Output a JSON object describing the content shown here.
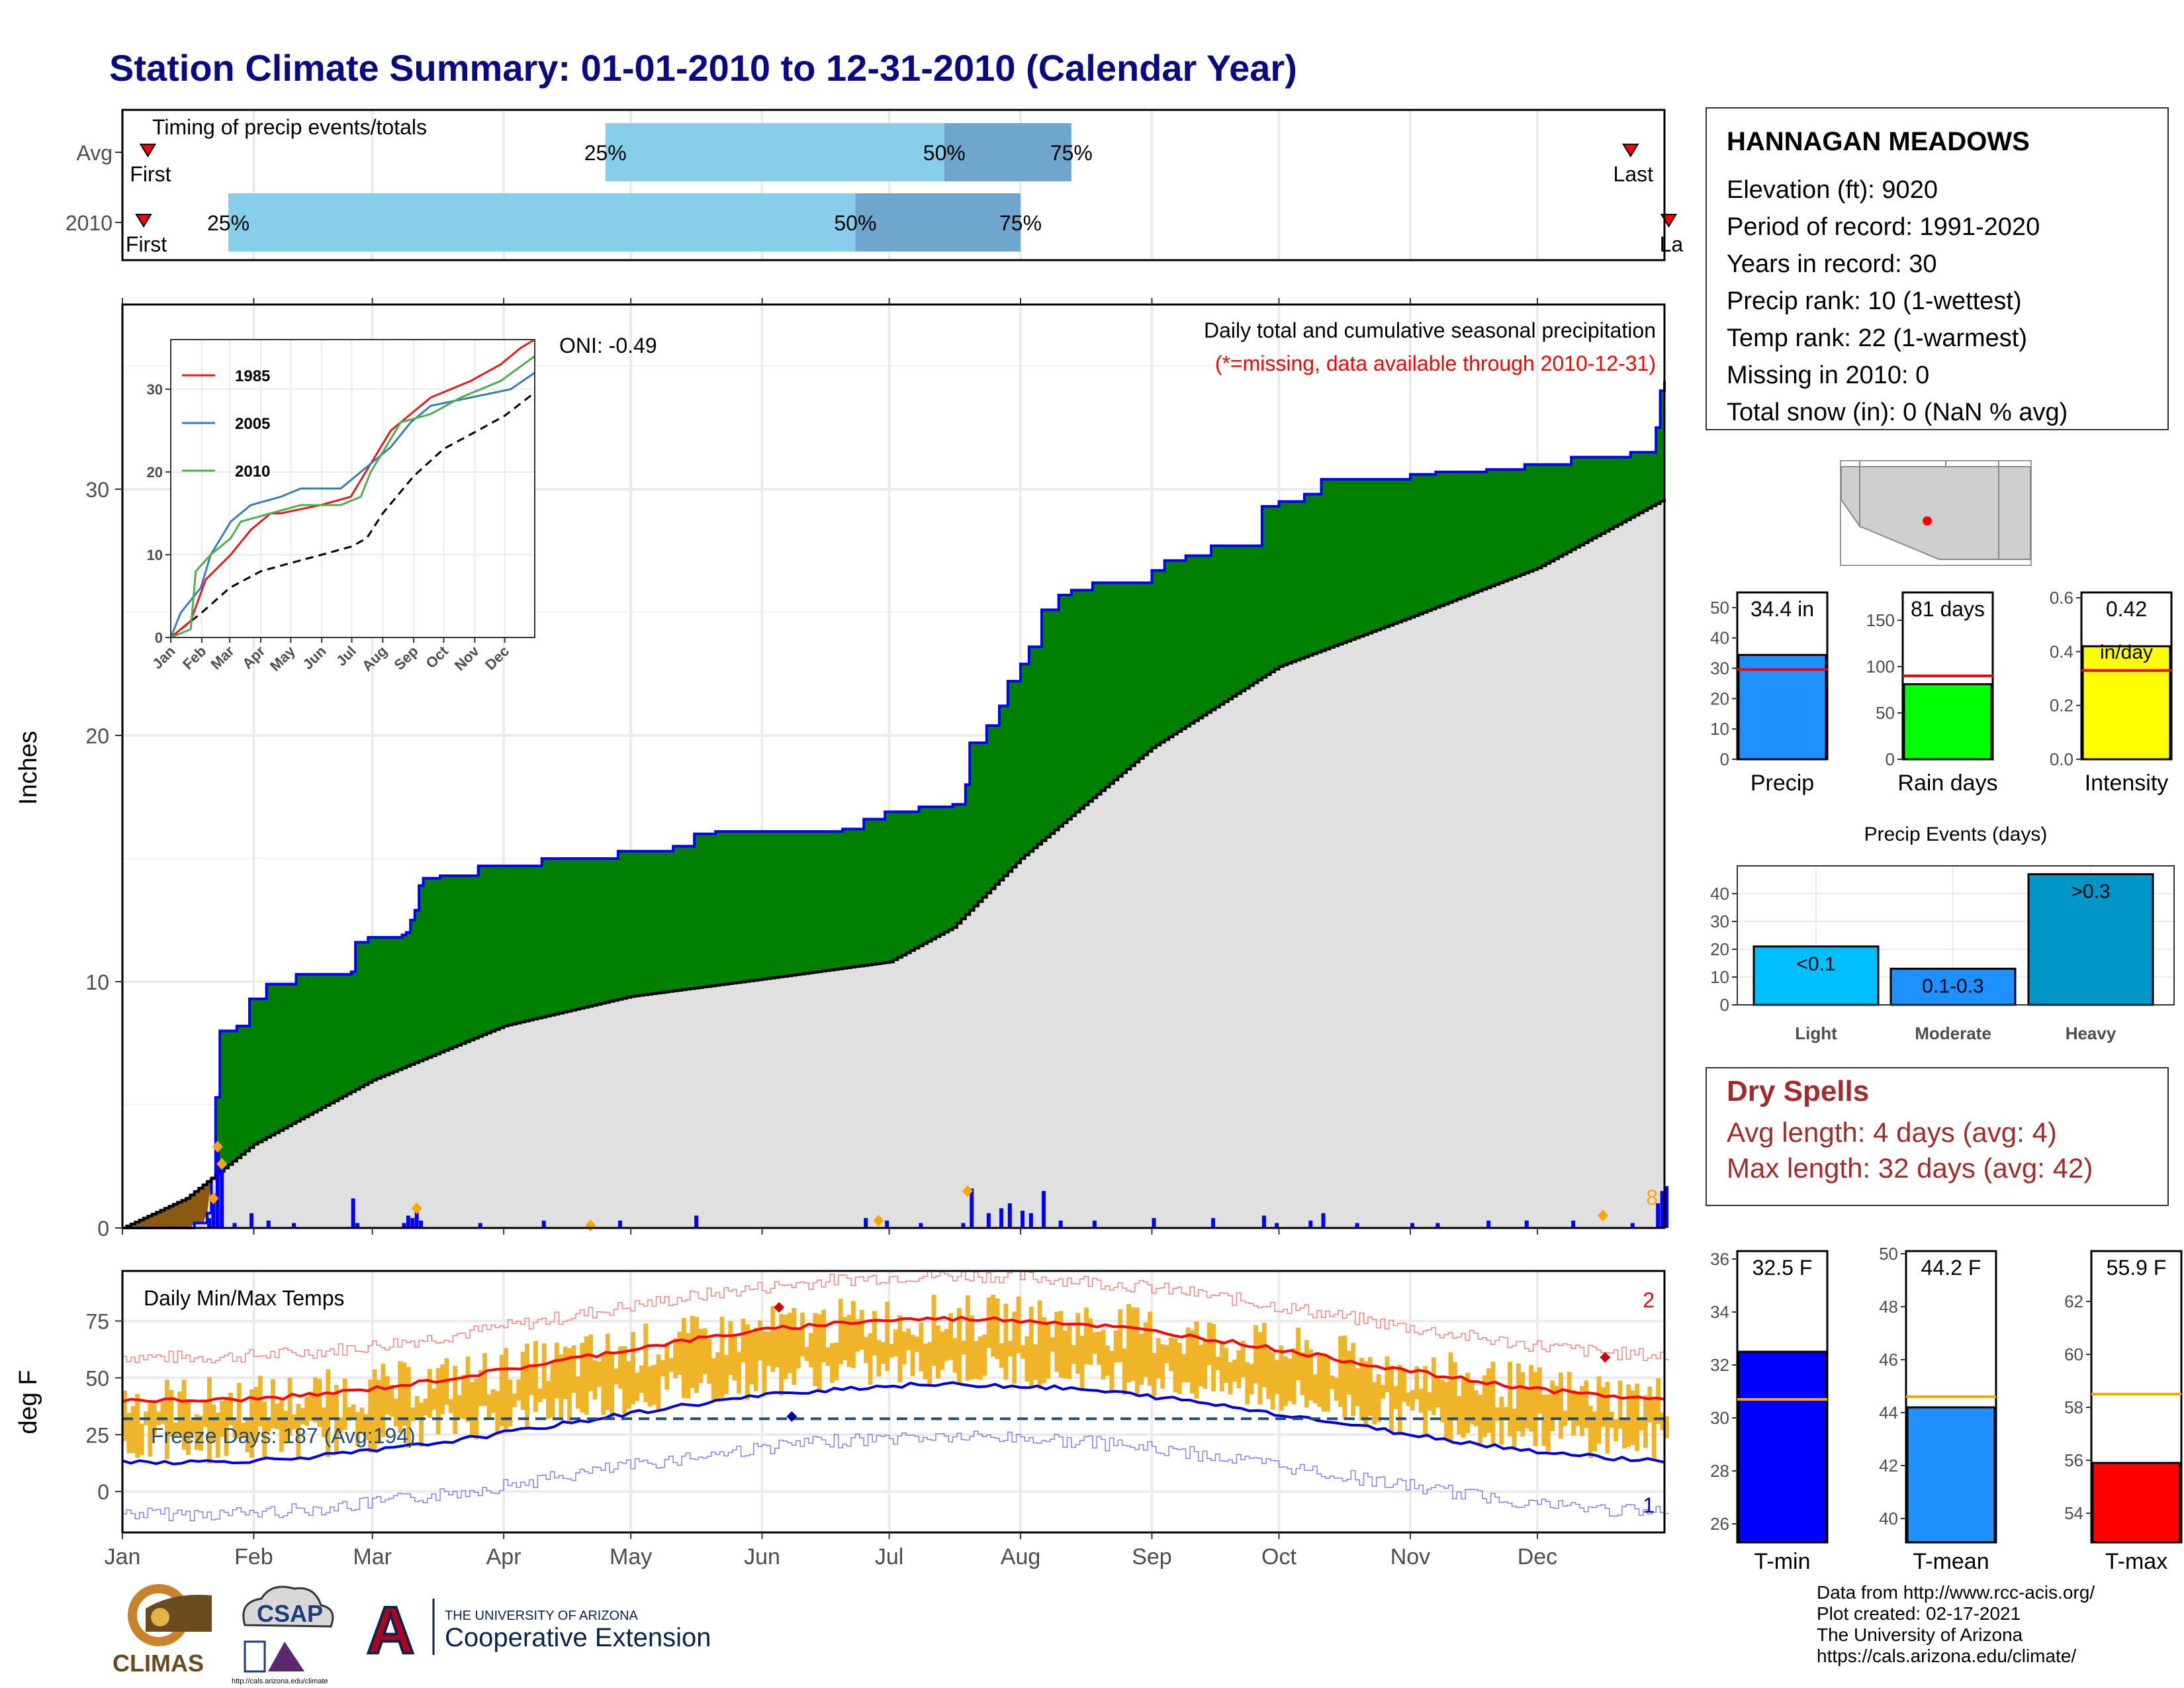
{
  "title": "Station Climate Summary: 01-01-2010 to 12-31-2010 (Calendar Year)",
  "station": {
    "name": "HANNAGAN MEADOWS",
    "lines": [
      "Elevation (ft): 9020",
      "Period of record: 1991-2020",
      "Years in record: 30",
      "Precip rank: 10 (1-wettest)",
      "Temp rank: 22 (1-warmest)",
      "Missing in 2010: 0",
      "Total snow (in): 0 (NaN % avg)"
    ]
  },
  "dry_spells": {
    "title": "Dry Spells",
    "avg": "Avg length: 4 days (avg: 4)",
    "max": "Max length: 32 days (avg: 42)"
  },
  "credits": [
    "Data from http://www.rcc-acis.org/",
    "Plot created: 02-17-2021",
    "The University of Arizona",
    "https://cals.arizona.edu/climate/"
  ],
  "logos": {
    "climas": "CLIMAS",
    "csap": "CSAP",
    "csap_url": "http://cals.arizona.edu/climate",
    "ua_line1": "THE UNIVERSITY OF ARIZONA",
    "ua_line2": "Cooperative Extension",
    "ua_letter": "A"
  },
  "colors": {
    "title": "#0a0a82",
    "surplus": "#008000",
    "deficit": "#8b5a12",
    "climo_fill": "#e0e0e0",
    "daily_bar": "#0000ff",
    "range_bar": "#f0b428",
    "tmax_line": "#ff0000",
    "tmin_line": "#0000dd",
    "light_blue": "#87ceeb",
    "mid_blue": "#6ea6cd",
    "dry_text": "#a52a2a"
  },
  "chart_data": [
    {
      "id": "timing",
      "type": "bar",
      "title": "Timing of precip events/totals",
      "rows": [
        {
          "label": "Avg",
          "first_day": 6,
          "q25_day": 114,
          "q50_day": 194,
          "q75_day": 224,
          "last_day": 356,
          "first_label": "First",
          "last_label": "Last",
          "labels": [
            "25%",
            "50%",
            "75%"
          ]
        },
        {
          "label": "2010",
          "first_day": 5,
          "q25_day": 25,
          "q50_day": 173,
          "q75_day": 212,
          "last_day": 365,
          "first_label": "First",
          "last_label": "La",
          "labels": [
            "25%",
            "50%",
            "75%"
          ]
        }
      ]
    },
    {
      "id": "cumulative-precip",
      "type": "area",
      "ylabel": "Inches",
      "ylim": [
        0,
        37.5
      ],
      "yticks": [
        0,
        10,
        20,
        30
      ],
      "months": [
        "Jan",
        "Feb",
        "Mar",
        "Apr",
        "May",
        "Jun",
        "Jul",
        "Aug",
        "Sep",
        "Oct",
        "Nov",
        "Dec"
      ],
      "oni": "ONI: -0.49",
      "note1": "Daily total and cumulative seasonal precipitation",
      "note2": "(*=missing, data available through 2010-12-31)",
      "corner_count": "8",
      "observed_2010": [
        [
          0,
          0
        ],
        [
          17,
          0.2
        ],
        [
          20,
          0.6
        ],
        [
          21,
          2.0
        ],
        [
          22,
          5.3
        ],
        [
          23,
          8.0
        ],
        [
          27,
          8.2
        ],
        [
          30,
          9.3
        ],
        [
          34,
          9.9
        ],
        [
          41,
          10.3
        ],
        [
          54,
          10.4
        ],
        [
          55,
          11.6
        ],
        [
          58,
          11.8
        ],
        [
          66,
          11.9
        ],
        [
          67,
          12.0
        ],
        [
          68,
          12.5
        ],
        [
          69,
          12.9
        ],
        [
          70,
          13.9
        ],
        [
          71,
          14.2
        ],
        [
          75,
          14.3
        ],
        [
          84,
          14.7
        ],
        [
          99,
          15.0
        ],
        [
          117,
          15.3
        ],
        [
          130,
          15.5
        ],
        [
          135,
          16.0
        ],
        [
          140,
          16.1
        ],
        [
          170,
          16.2
        ],
        [
          175,
          16.6
        ],
        [
          180,
          16.9
        ],
        [
          188,
          17.1
        ],
        [
          196,
          17.2
        ],
        [
          199,
          18.0
        ],
        [
          200,
          19.7
        ],
        [
          204,
          20.4
        ],
        [
          207,
          21.2
        ],
        [
          209,
          22.2
        ],
        [
          212,
          22.9
        ],
        [
          214,
          23.6
        ],
        [
          217,
          25.1
        ],
        [
          221,
          25.7
        ],
        [
          224,
          25.9
        ],
        [
          229,
          26.2
        ],
        [
          243,
          26.7
        ],
        [
          246,
          27.1
        ],
        [
          251,
          27.3
        ],
        [
          257,
          27.7
        ],
        [
          269,
          29.3
        ],
        [
          273,
          29.5
        ],
        [
          279,
          29.8
        ],
        [
          283,
          30.4
        ],
        [
          304,
          30.6
        ],
        [
          310,
          30.7
        ],
        [
          322,
          30.8
        ],
        [
          331,
          31.0
        ],
        [
          342,
          31.3
        ],
        [
          351,
          31.3
        ],
        [
          356,
          31.5
        ],
        [
          362,
          32.5
        ],
        [
          363,
          34.0
        ],
        [
          364,
          34.4
        ]
      ],
      "climo_avg": [
        [
          0,
          0
        ],
        [
          15,
          1.2
        ],
        [
          31,
          3.4
        ],
        [
          59,
          6.0
        ],
        [
          90,
          8.2
        ],
        [
          120,
          9.4
        ],
        [
          151,
          10.1
        ],
        [
          181,
          10.8
        ],
        [
          196,
          12.2
        ],
        [
          212,
          15.0
        ],
        [
          243,
          19.5
        ],
        [
          273,
          22.8
        ],
        [
          304,
          24.8
        ],
        [
          334,
          26.8
        ],
        [
          364,
          29.6
        ]
      ],
      "daily_precip": [
        [
          20,
          0.4
        ],
        [
          21,
          1.4
        ],
        [
          22,
          3.3
        ],
        [
          23,
          2.7
        ],
        [
          26,
          0.2
        ],
        [
          30,
          0.6
        ],
        [
          34,
          0.3
        ],
        [
          40,
          0.2
        ],
        [
          54,
          1.2
        ],
        [
          55,
          0.2
        ],
        [
          66,
          0.2
        ],
        [
          67,
          0.5
        ],
        [
          68,
          0.4
        ],
        [
          69,
          0.9
        ],
        [
          70,
          0.3
        ],
        [
          84,
          0.2
        ],
        [
          99,
          0.3
        ],
        [
          117,
          0.3
        ],
        [
          135,
          0.5
        ],
        [
          175,
          0.4
        ],
        [
          180,
          0.3
        ],
        [
          188,
          0.2
        ],
        [
          198,
          0.2
        ],
        [
          200,
          1.6
        ],
        [
          204,
          0.6
        ],
        [
          207,
          0.8
        ],
        [
          209,
          1.0
        ],
        [
          212,
          0.7
        ],
        [
          214,
          0.6
        ],
        [
          217,
          1.5
        ],
        [
          221,
          0.3
        ],
        [
          229,
          0.3
        ],
        [
          243,
          0.4
        ],
        [
          257,
          0.4
        ],
        [
          269,
          0.5
        ],
        [
          272,
          0.2
        ],
        [
          280,
          0.3
        ],
        [
          283,
          0.6
        ],
        [
          291,
          0.2
        ],
        [
          304,
          0.2
        ],
        [
          310,
          0.2
        ],
        [
          322,
          0.3
        ],
        [
          331,
          0.3
        ],
        [
          342,
          0.3
        ],
        [
          356,
          0.2
        ],
        [
          362,
          1.0
        ],
        [
          363,
          1.5
        ],
        [
          364,
          1.7
        ]
      ],
      "markers": [
        [
          21,
          1.2
        ],
        [
          22,
          3.3
        ],
        [
          23,
          2.6
        ],
        [
          69,
          0.8
        ],
        [
          110,
          0.1
        ],
        [
          178,
          0.3
        ],
        [
          199,
          1.5
        ],
        [
          349,
          0.5
        ]
      ]
    },
    {
      "id": "inset",
      "type": "line",
      "yticks": [
        0,
        10,
        20,
        30
      ],
      "ylim": [
        0,
        36
      ],
      "months": [
        "Jan",
        "Feb",
        "Mar",
        "Apr",
        "May",
        "Jun",
        "Jul",
        "Aug",
        "Sep",
        "Oct",
        "Nov",
        "Dec"
      ],
      "series": [
        {
          "name": "1985",
          "color": "#e41a1c",
          "points": [
            [
              0,
              0
            ],
            [
              20,
              2
            ],
            [
              35,
              7
            ],
            [
              60,
              10
            ],
            [
              80,
              13
            ],
            [
              100,
              15
            ],
            [
              110,
              15
            ],
            [
              150,
              16
            ],
            [
              180,
              17
            ],
            [
              200,
              21
            ],
            [
              220,
              25
            ],
            [
              240,
              27
            ],
            [
              260,
              29
            ],
            [
              300,
              31
            ],
            [
              330,
              33
            ],
            [
              350,
              35
            ],
            [
              364,
              36
            ]
          ]
        },
        {
          "name": "2005",
          "color": "#377eb8",
          "points": [
            [
              0,
              0
            ],
            [
              10,
              3
            ],
            [
              30,
              6
            ],
            [
              40,
              10
            ],
            [
              60,
              14
            ],
            [
              80,
              16
            ],
            [
              110,
              17
            ],
            [
              130,
              18
            ],
            [
              170,
              18
            ],
            [
              200,
              21
            ],
            [
              220,
              23
            ],
            [
              240,
              26
            ],
            [
              260,
              28
            ],
            [
              300,
              29
            ],
            [
              340,
              30
            ],
            [
              364,
              32
            ]
          ]
        },
        {
          "name": "2010",
          "color": "#4daf4a",
          "points": [
            [
              0,
              0
            ],
            [
              20,
              1
            ],
            [
              25,
              8
            ],
            [
              40,
              10
            ],
            [
              60,
              12
            ],
            [
              70,
              14
            ],
            [
              100,
              15
            ],
            [
              130,
              16
            ],
            [
              170,
              16
            ],
            [
              190,
              17
            ],
            [
              200,
              20
            ],
            [
              215,
              23
            ],
            [
              230,
              26
            ],
            [
              260,
              27
            ],
            [
              290,
              29
            ],
            [
              330,
              31
            ],
            [
              364,
              34
            ]
          ]
        }
      ],
      "average": [
        [
          0,
          0
        ],
        [
          31,
          3
        ],
        [
          59,
          6
        ],
        [
          90,
          8
        ],
        [
          120,
          9
        ],
        [
          151,
          10
        ],
        [
          181,
          11
        ],
        [
          196,
          12
        ],
        [
          212,
          15
        ],
        [
          243,
          19.5
        ],
        [
          273,
          22.8
        ],
        [
          304,
          24.8
        ],
        [
          334,
          26.8
        ],
        [
          364,
          29.6
        ]
      ]
    },
    {
      "id": "bars-precip",
      "type": "bar",
      "xlabel": "Precip",
      "value_label": "34.4 in",
      "value": 34.4,
      "avg": 29.6,
      "ylim": [
        0,
        55
      ],
      "yticks": [
        0,
        10,
        20,
        30,
        40,
        50
      ],
      "color": "#1e90ff"
    },
    {
      "id": "bars-raindays",
      "type": "bar",
      "xlabel": "Rain days",
      "value_label": "81 days",
      "value": 81,
      "avg": 90,
      "ylim": [
        0,
        180
      ],
      "yticks": [
        0,
        50,
        100,
        150
      ],
      "color": "#00ff00"
    },
    {
      "id": "bars-intensity",
      "type": "bar",
      "xlabel": "Intensity",
      "value_label": "0.42",
      "value_label2": "in/day",
      "value": 0.42,
      "avg": 0.33,
      "ylim": [
        0,
        0.62
      ],
      "yticks": [
        "0.0",
        "0.2",
        "0.4",
        "0.6"
      ],
      "color": "#ffff00"
    },
    {
      "id": "precip-events",
      "type": "bar",
      "title": "Precip Events (days)",
      "categories": [
        "Light",
        "Moderate",
        "Heavy"
      ],
      "labels": [
        "<0.1",
        "0.1-0.3",
        ">0.3"
      ],
      "values": [
        21,
        13,
        47
      ],
      "colors": [
        "#00bfff",
        "#1e90ff",
        "#0096c8"
      ],
      "ylim": [
        0,
        50
      ],
      "yticks": [
        0,
        10,
        20,
        30,
        40
      ]
    },
    {
      "id": "temps",
      "type": "line",
      "title": "Daily Min/Max Temps",
      "ylabel": "deg F",
      "ylim": [
        -18,
        97
      ],
      "yticks": [
        0,
        25,
        50,
        75
      ],
      "freeze_text": "Freeze Days: 187 (Avg:194)",
      "freeze_line": 32,
      "count_top": "2",
      "count_bottom": "1",
      "months": [
        "Jan",
        "Feb",
        "Mar",
        "Apr",
        "May",
        "Jun",
        "Jul",
        "Aug",
        "Sep",
        "Oct",
        "Nov",
        "Dec"
      ]
    },
    {
      "id": "bars-tmin",
      "type": "bar",
      "xlabel": "T-min",
      "value_label": "32.5 F",
      "value": 32.5,
      "avg": 30.7,
      "ylim": [
        25.3,
        36.3
      ],
      "yticks": [
        26,
        28,
        30,
        32,
        34,
        36
      ],
      "color": "#0000ff"
    },
    {
      "id": "bars-tmean",
      "type": "bar",
      "xlabel": "T-mean",
      "value_label": "44.2 F",
      "value": 44.2,
      "avg": 44.6,
      "ylim": [
        39.1,
        50.1
      ],
      "yticks": [
        40,
        42,
        44,
        46,
        48,
        50
      ],
      "color": "#1e90ff"
    },
    {
      "id": "bars-tmax",
      "type": "bar",
      "xlabel": "T-max",
      "value_label": "55.9 F",
      "value": 55.9,
      "avg": 58.5,
      "ylim": [
        52.9,
        63.9
      ],
      "yticks": [
        54,
        56,
        58,
        60,
        62
      ],
      "color": "#ff0000"
    }
  ]
}
